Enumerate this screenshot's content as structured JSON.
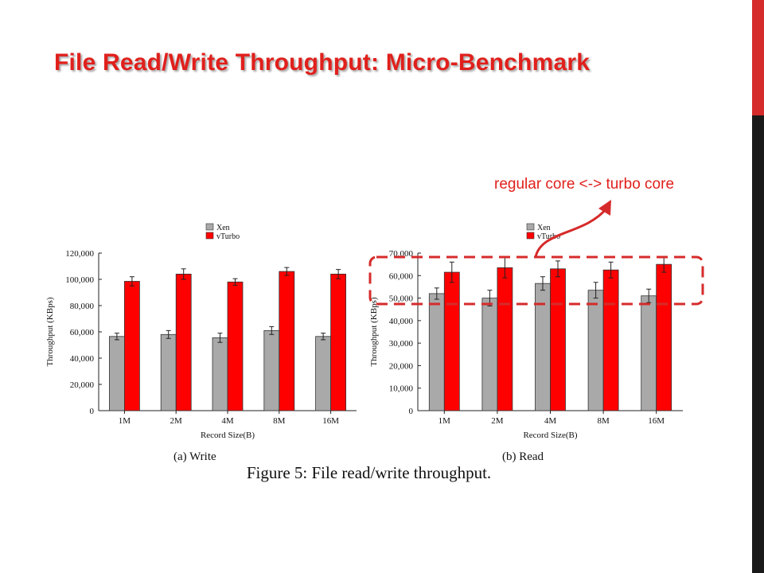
{
  "slide": {
    "title": "File Read/Write Throughput: Micro-Benchmark",
    "annotation": "regular core <-> turbo core",
    "figure_caption": "Figure 5: File read/write throughput.",
    "colors": {
      "title": "#e0201c",
      "accent_bar": "#d62b2b",
      "sidebar": "#1a1a1a",
      "annotation_highlight": "#d62b2b"
    }
  },
  "chart_data": [
    {
      "type": "bar",
      "subcaption": "(a) Write",
      "categories": [
        "1M",
        "2M",
        "4M",
        "8M",
        "16M"
      ],
      "xlabel": "Record Size(B)",
      "ylabel": "Throughput (KBps)",
      "ylim": [
        0,
        120000
      ],
      "yticks": [
        0,
        20000,
        40000,
        60000,
        80000,
        100000,
        120000
      ],
      "ytick_labels": [
        "0",
        "20,000",
        "40,000",
        "60,000",
        "80,000",
        "100,000",
        "120,000"
      ],
      "legend_position": "top-center",
      "series": [
        {
          "name": "Xen",
          "color": "#a9a9a9",
          "values": [
            56500,
            58000,
            55500,
            61000,
            56500
          ],
          "errors": [
            2500,
            3000,
            3500,
            3000,
            2500
          ]
        },
        {
          "name": "vTurbo",
          "color": "#ff0000",
          "values": [
            98500,
            104000,
            98000,
            106000,
            104000
          ],
          "errors": [
            3500,
            4000,
            2500,
            3000,
            3500
          ]
        }
      ]
    },
    {
      "type": "bar",
      "subcaption": "(b) Read",
      "categories": [
        "1M",
        "2M",
        "4M",
        "8M",
        "16M"
      ],
      "xlabel": "Record Size(B)",
      "ylabel": "Throughput (KBps)",
      "ylim": [
        0,
        70000
      ],
      "yticks": [
        0,
        10000,
        20000,
        30000,
        40000,
        50000,
        60000,
        70000
      ],
      "ytick_labels": [
        "0",
        "10,000",
        "20,000",
        "30,000",
        "40,000",
        "50,000",
        "60,000",
        "70,000"
      ],
      "legend_position": "top-center",
      "series": [
        {
          "name": "Xen",
          "color": "#a9a9a9",
          "values": [
            52000,
            50000,
            56500,
            53500,
            51000
          ],
          "errors": [
            2500,
            3500,
            3000,
            3500,
            3000
          ]
        },
        {
          "name": "vTurbo",
          "color": "#ff0000",
          "values": [
            61500,
            63500,
            63000,
            62500,
            65000
          ],
          "errors": [
            4500,
            4500,
            3500,
            3500,
            3500
          ]
        }
      ]
    }
  ]
}
